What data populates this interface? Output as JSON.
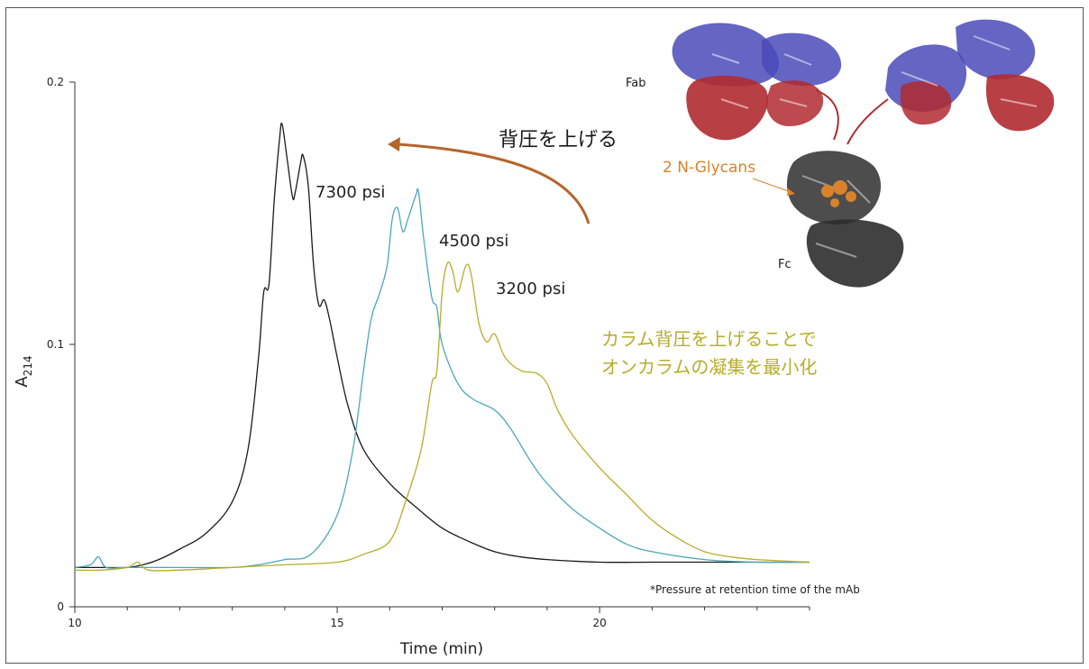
{
  "chart_data": {
    "type": "line",
    "xlabel": "Time (min)",
    "ylabel_main": "A",
    "ylabel_sub": "214",
    "xlim": [
      10,
      24
    ],
    "ylim": [
      0,
      0.2
    ],
    "x_ticks": [
      10,
      15,
      20
    ],
    "y_ticks": [
      0,
      0.1,
      0.2
    ],
    "x_tick_labels": [
      "10",
      "15",
      "20"
    ],
    "y_tick_labels": [
      "0",
      "0.1",
      "0.2"
    ],
    "grid": false,
    "series": [
      {
        "name": "7300 psi",
        "color": "#1a1a1a",
        "x": [
          10.0,
          10.5,
          11.0,
          11.3,
          11.6,
          12.0,
          12.5,
          13.0,
          13.3,
          13.5,
          13.6,
          13.7,
          13.8,
          13.9,
          13.95,
          14.05,
          14.15,
          14.2,
          14.3,
          14.35,
          14.45,
          14.55,
          14.65,
          14.75,
          14.85,
          15.0,
          15.2,
          15.5,
          16.0,
          16.5,
          17.0,
          17.5,
          18.0,
          18.5,
          19.0,
          20.0,
          21.0,
          22.0,
          24.0
        ],
        "y": [
          0.015,
          0.015,
          0.015,
          0.016,
          0.018,
          0.022,
          0.028,
          0.04,
          0.06,
          0.095,
          0.12,
          0.123,
          0.155,
          0.178,
          0.184,
          0.17,
          0.156,
          0.158,
          0.169,
          0.172,
          0.16,
          0.13,
          0.115,
          0.117,
          0.11,
          0.095,
          0.077,
          0.06,
          0.047,
          0.038,
          0.03,
          0.025,
          0.021,
          0.019,
          0.018,
          0.017,
          0.017,
          0.017,
          0.017
        ]
      },
      {
        "name": "4500 psi",
        "color": "#4ba8b8",
        "x": [
          10.0,
          10.3,
          10.45,
          10.6,
          11.0,
          12.0,
          13.0,
          13.5,
          14.0,
          14.5,
          15.0,
          15.3,
          15.5,
          15.65,
          15.8,
          15.95,
          16.05,
          16.15,
          16.25,
          16.35,
          16.5,
          16.55,
          16.65,
          16.8,
          16.9,
          17.0,
          17.3,
          17.6,
          18.0,
          18.3,
          18.7,
          19.0,
          19.5,
          20.0,
          20.5,
          21.0,
          22.0,
          23.0,
          24.0
        ],
        "y": [
          0.015,
          0.016,
          0.019,
          0.015,
          0.015,
          0.015,
          0.015,
          0.016,
          0.018,
          0.02,
          0.035,
          0.06,
          0.09,
          0.11,
          0.119,
          0.13,
          0.148,
          0.152,
          0.143,
          0.148,
          0.157,
          0.158,
          0.14,
          0.118,
          0.114,
          0.1,
          0.085,
          0.079,
          0.075,
          0.068,
          0.055,
          0.047,
          0.037,
          0.03,
          0.024,
          0.021,
          0.018,
          0.017,
          0.017
        ]
      },
      {
        "name": "3200 psi",
        "color": "#b6ad2a",
        "x": [
          10.0,
          10.5,
          11.0,
          11.2,
          11.4,
          12.0,
          13.0,
          14.0,
          15.0,
          15.5,
          16.0,
          16.3,
          16.6,
          16.8,
          16.9,
          17.0,
          17.1,
          17.2,
          17.3,
          17.45,
          17.55,
          17.7,
          17.85,
          18.0,
          18.2,
          18.5,
          18.8,
          19.0,
          19.2,
          19.5,
          20.0,
          20.5,
          21.0,
          21.5,
          22.0,
          22.5,
          23.0,
          24.0
        ],
        "y": [
          0.014,
          0.014,
          0.015,
          0.017,
          0.014,
          0.014,
          0.015,
          0.016,
          0.017,
          0.02,
          0.025,
          0.04,
          0.06,
          0.085,
          0.09,
          0.12,
          0.131,
          0.128,
          0.12,
          0.13,
          0.127,
          0.108,
          0.101,
          0.104,
          0.095,
          0.09,
          0.089,
          0.085,
          0.075,
          0.065,
          0.053,
          0.043,
          0.033,
          0.026,
          0.021,
          0.019,
          0.018,
          0.017
        ]
      }
    ],
    "series_labels": [
      "7300 psi",
      "4500 psi",
      "3200 psi"
    ],
    "annotations": {
      "arrow_label": "背圧を上げる",
      "note_line1": "カラム背圧を上げることで",
      "note_line2": "オンカラムの凝集を最小化",
      "footnote": "*Pressure at retention time of the mAb",
      "fab_label": "Fab",
      "fc_label": "Fc",
      "glycan_label": "2 N-Glycans"
    },
    "colors": {
      "arrow": "#b5652a",
      "note": "#b6ad2a",
      "glycan": "#d9822b",
      "heavy_chain": "#3a3aaa",
      "light_chain": "#a3222a",
      "fc": "#333333"
    }
  }
}
